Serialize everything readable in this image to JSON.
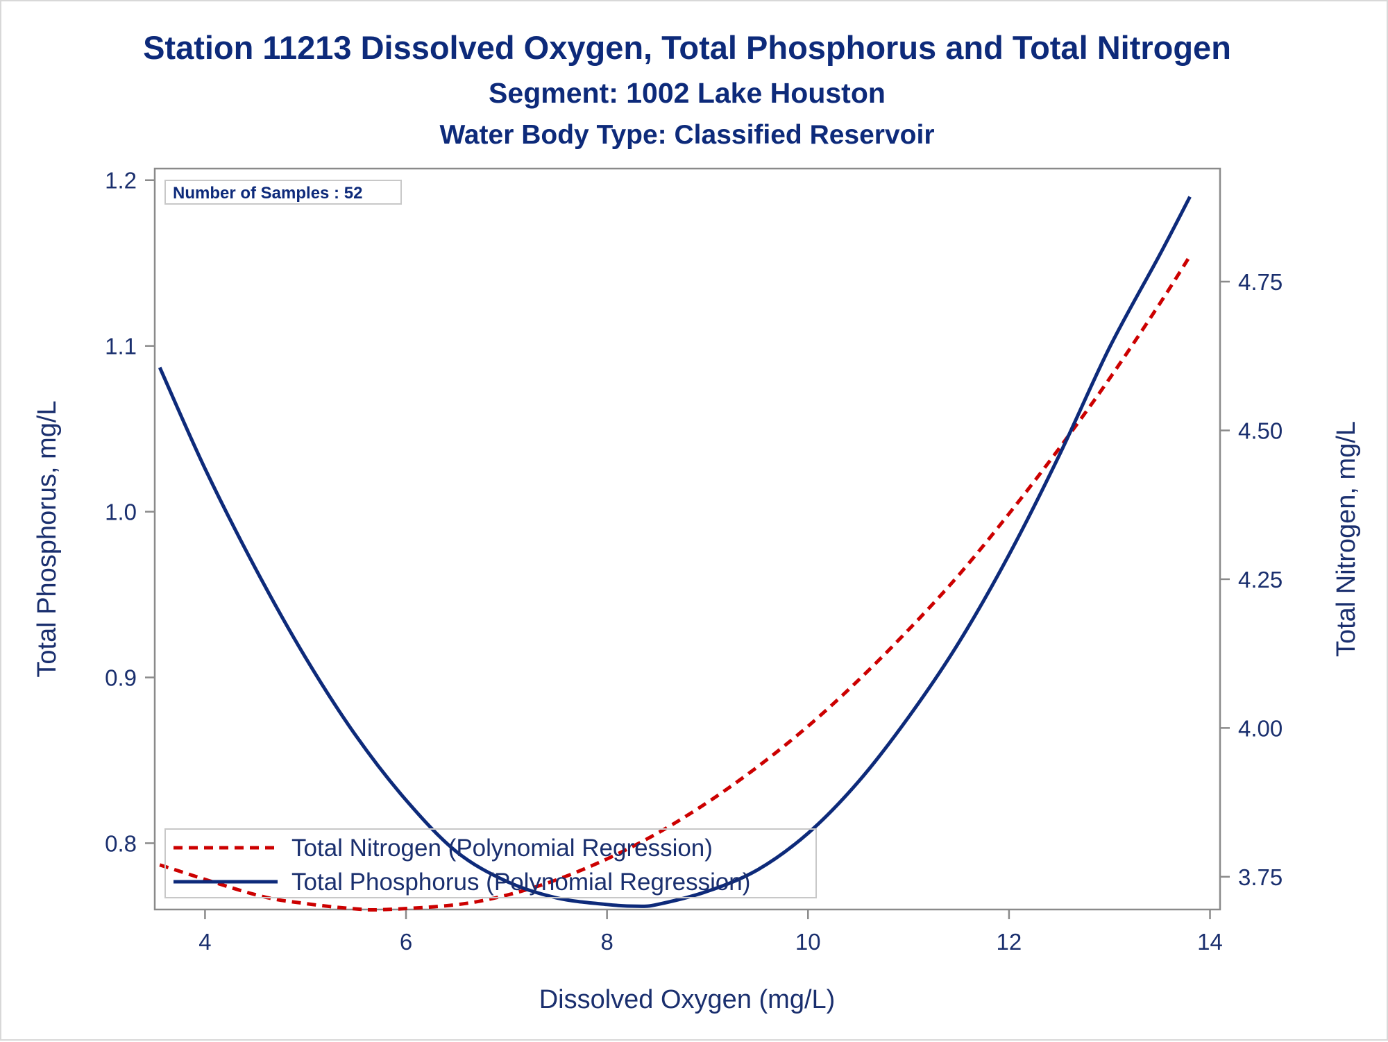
{
  "titles": {
    "main": "Station 11213  Dissolved Oxygen, Total Phosphorus and Total Nitrogen",
    "segment": "Segment: 1002  Lake Houston",
    "water_body": "Water Body Type: Classified Reservoir"
  },
  "inset": {
    "samples_text": "Number of Samples : 52"
  },
  "colors": {
    "phosphorus": "#0d2a7a",
    "nitrogen": "#cc0000",
    "text": "#1a2f6e",
    "axis": "#8a8a8a"
  },
  "chart_data": {
    "type": "line",
    "title": "Station 11213  Dissolved Oxygen, Total Phosphorus and Total Nitrogen",
    "xlabel": "Dissolved Oxygen (mg/L)",
    "ylabel": "Total Phosphorus, mg/L",
    "y2label": "Total Nitrogen, mg/L",
    "xlim": [
      3.5,
      14.1
    ],
    "ylim": [
      0.76,
      1.207
    ],
    "y2lim": [
      3.695,
      4.94
    ],
    "xticks": [
      "4",
      "6",
      "8",
      "10",
      "12",
      "14"
    ],
    "yticks": [
      "0.8",
      "0.9",
      "1.0",
      "1.1",
      "1.2"
    ],
    "y2ticks": [
      "3.75",
      "4.00",
      "4.25",
      "4.50",
      "4.75"
    ],
    "grid": false,
    "legend_position": "bottom-left",
    "series": [
      {
        "name": "Total Nitrogen (Polynomial Regression)",
        "axis": "right",
        "style": "dashed",
        "x": [
          3.55,
          4.5,
          5.0,
          5.5,
          5.8,
          6.5,
          7.0,
          7.5,
          8.0,
          8.5,
          9.0,
          9.5,
          10.0,
          10.5,
          11.0,
          11.5,
          12.0,
          12.5,
          13.0,
          13.5,
          13.8
        ],
        "values": [
          3.77,
          3.72,
          3.705,
          3.696,
          3.695,
          3.703,
          3.719,
          3.745,
          3.78,
          3.823,
          3.875,
          3.935,
          4.003,
          4.08,
          4.165,
          4.257,
          4.36,
          4.47,
          4.587,
          4.713,
          4.793
        ]
      },
      {
        "name": "Total Phosphorus (Polynomial Regression)",
        "axis": "left",
        "style": "solid",
        "x": [
          3.55,
          4.0,
          4.5,
          5.0,
          5.5,
          6.0,
          6.5,
          7.0,
          7.5,
          8.0,
          8.3,
          8.5,
          9.0,
          9.5,
          10.0,
          10.5,
          11.0,
          11.5,
          12.0,
          12.5,
          13.0,
          13.5,
          13.8
        ],
        "values": [
          1.087,
          1.026,
          0.966,
          0.912,
          0.865,
          0.826,
          0.795,
          0.777,
          0.767,
          0.763,
          0.762,
          0.763,
          0.771,
          0.784,
          0.806,
          0.837,
          0.876,
          0.921,
          0.974,
          1.034,
          1.099,
          1.155,
          1.19
        ]
      }
    ]
  }
}
